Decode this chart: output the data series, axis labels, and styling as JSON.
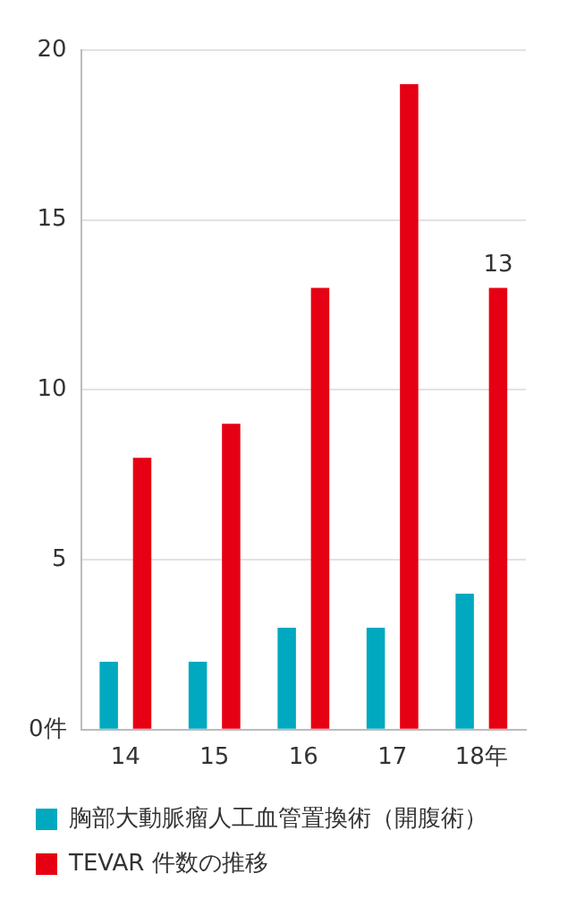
{
  "chart_data": {
    "type": "bar",
    "categories": [
      "14",
      "15",
      "16",
      "17",
      "18年"
    ],
    "series": [
      {
        "name": "胸部大動脈瘤人工血管置換術（開腹術）",
        "color": "#00a9bf",
        "values": [
          2,
          2,
          3,
          3,
          4
        ]
      },
      {
        "name": "TEVAR 件数の推移",
        "color": "#e60013",
        "values": [
          8,
          9,
          13,
          19,
          13
        ],
        "value_labels": [
          null,
          null,
          null,
          null,
          "13"
        ]
      }
    ],
    "ylim": [
      0,
      20
    ],
    "yticks": [
      {
        "value": 0,
        "label": "0件"
      },
      5,
      10,
      15,
      20
    ],
    "grid": "y",
    "legend": "bottom"
  }
}
